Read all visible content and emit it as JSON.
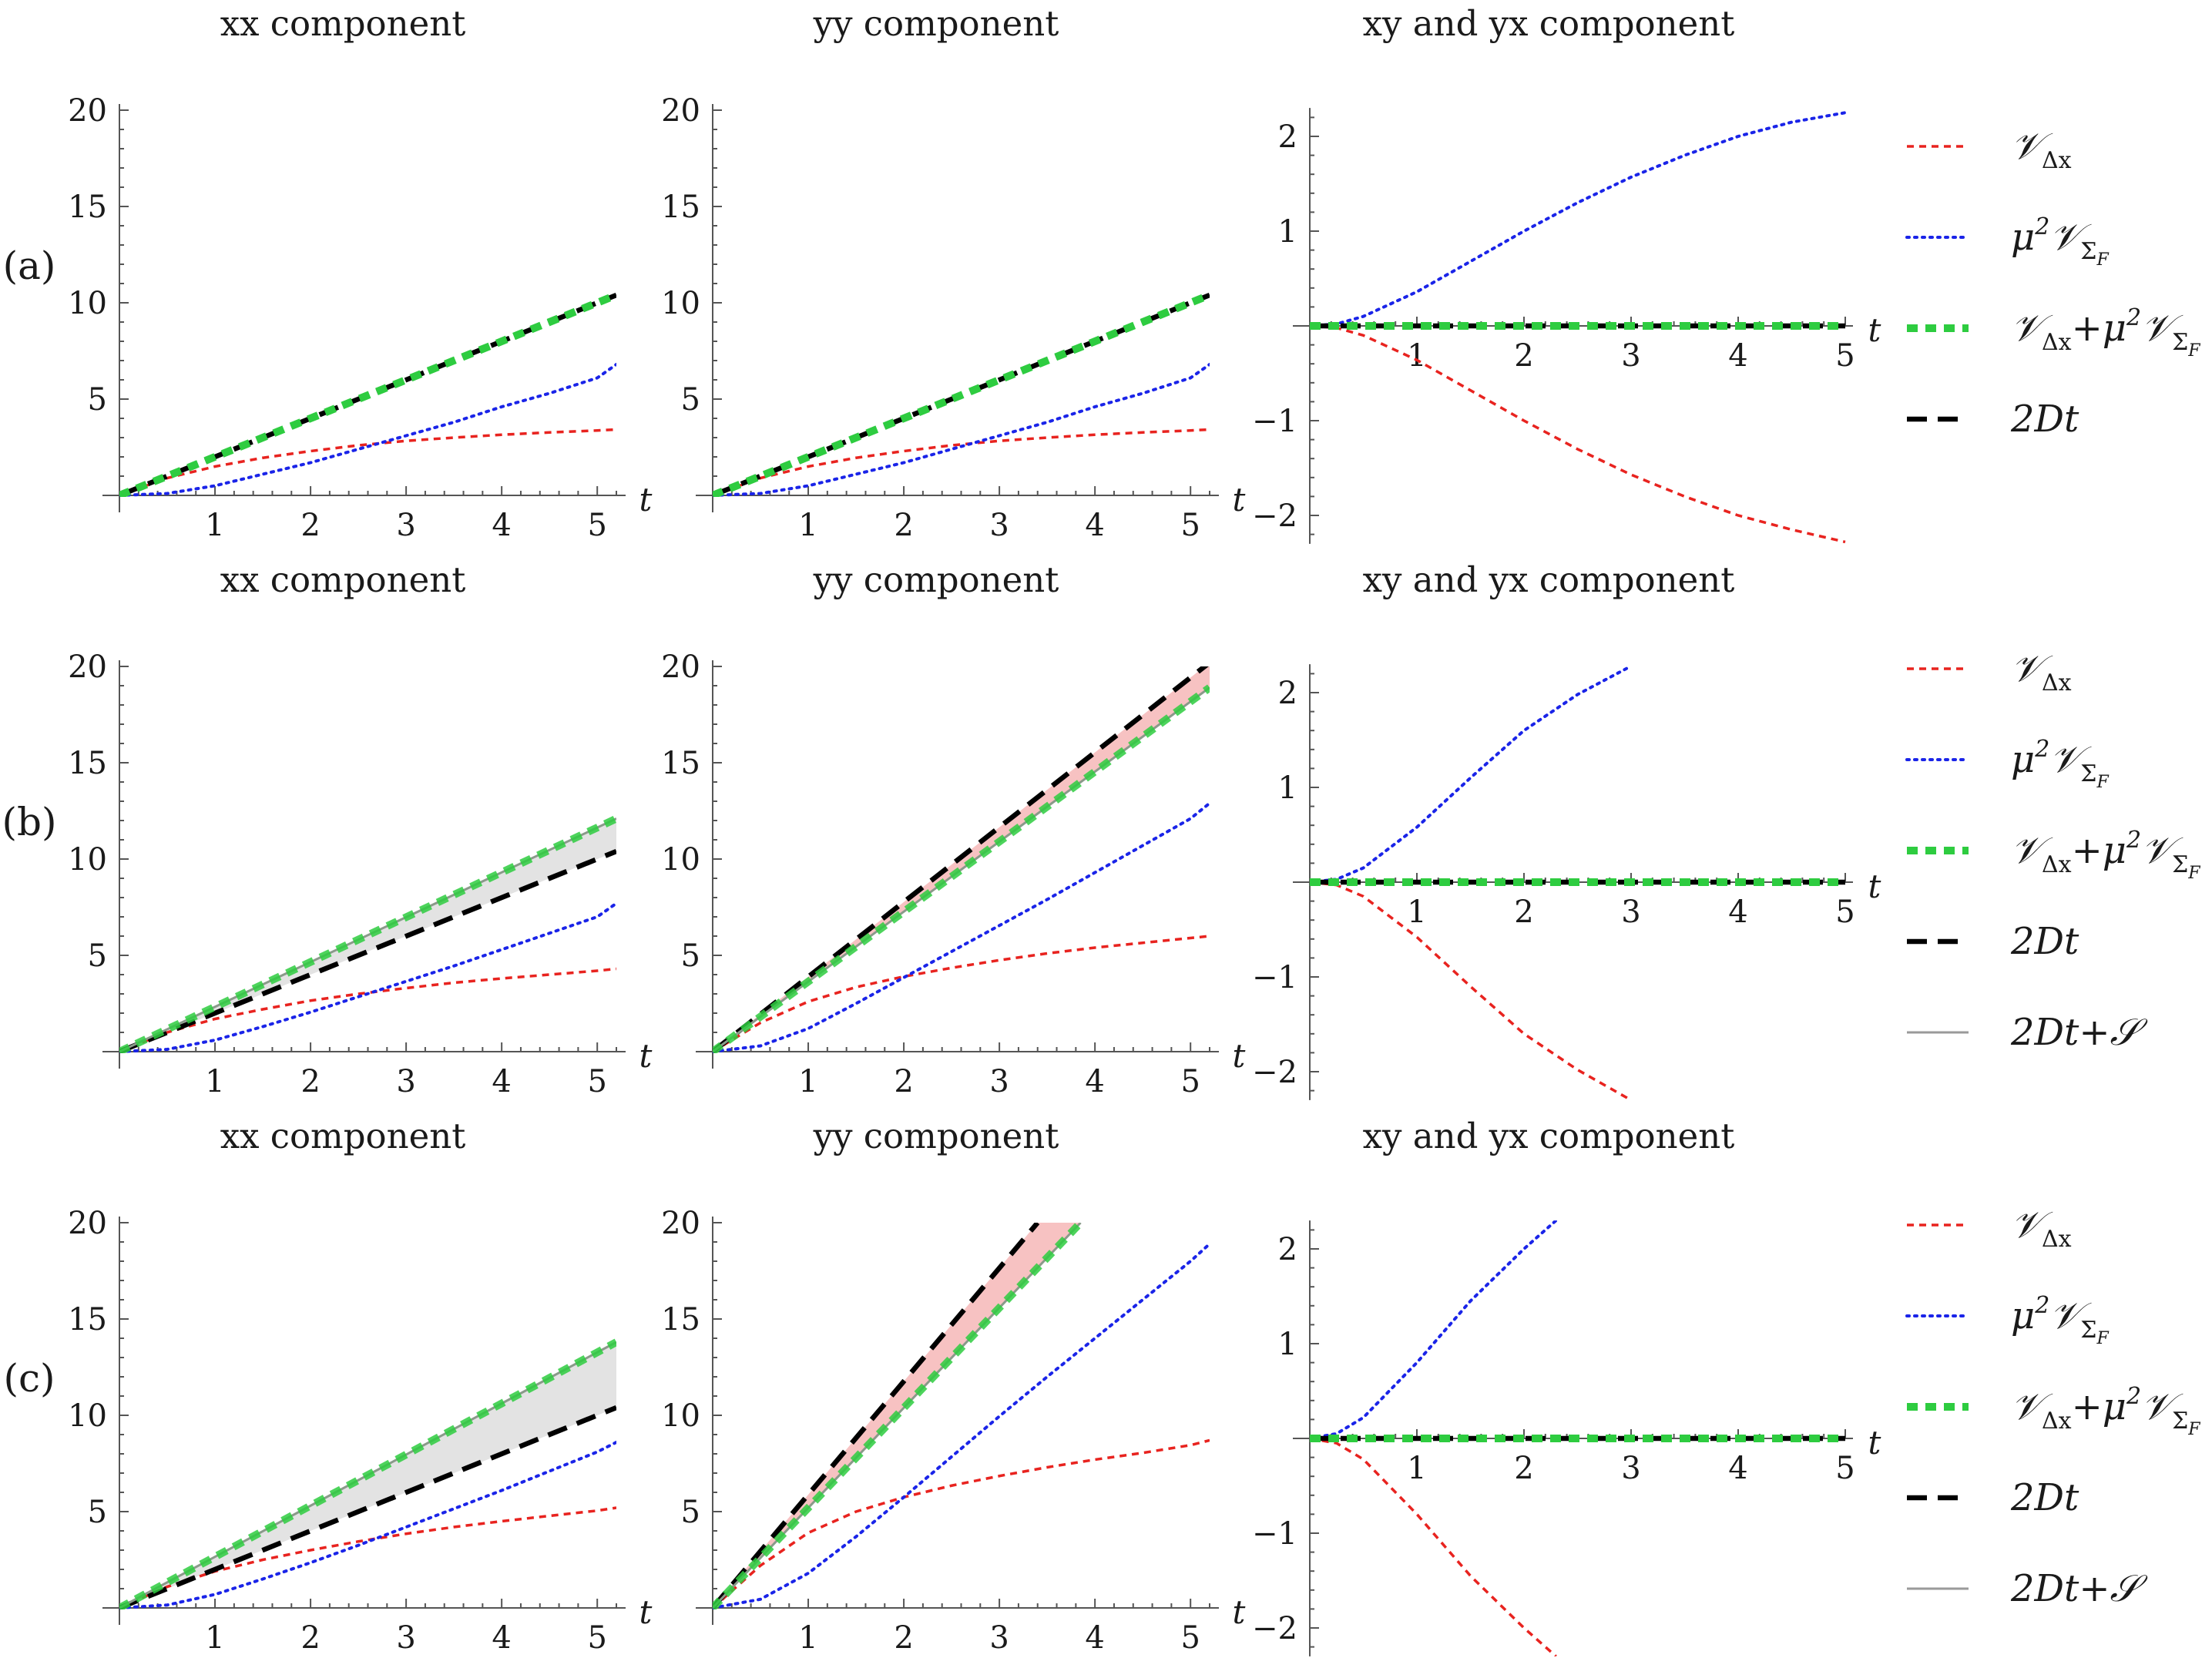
{
  "chart_data": [
    {
      "row": "a",
      "panel": "xx",
      "type": "line",
      "title": "xx component",
      "row_label": "(a)",
      "xlabel": "t",
      "ylabel": "",
      "xlim": [
        0,
        5.2
      ],
      "ylim": [
        0,
        20
      ],
      "xticks": [
        "1",
        "2",
        "3",
        "4",
        "5"
      ],
      "yticks": [
        "5",
        "10",
        "15",
        "20"
      ],
      "series": [
        {
          "name": "V_dx",
          "color": "#e8231f",
          "x": [
            0,
            0.5,
            1,
            1.5,
            2,
            2.5,
            3,
            3.5,
            4,
            4.5,
            5,
            5.2
          ],
          "values": [
            0,
            0.9,
            1.5,
            1.95,
            2.3,
            2.6,
            2.83,
            3.0,
            3.15,
            3.27,
            3.37,
            3.42
          ]
        },
        {
          "name": "mu2V_SF",
          "color": "#1a24e8",
          "x": [
            0,
            0.5,
            1,
            1.5,
            2,
            2.5,
            3,
            3.5,
            4,
            4.5,
            5,
            5.2
          ],
          "values": [
            0,
            0.1,
            0.5,
            1.1,
            1.7,
            2.4,
            3.1,
            3.8,
            4.6,
            5.3,
            6.1,
            6.8
          ]
        },
        {
          "name": "sum",
          "color": "#2ecc40",
          "x": [
            0,
            5.2
          ],
          "values": [
            0,
            10.4
          ]
        },
        {
          "name": "2Dt",
          "color": "#000000",
          "x": [
            0,
            5.2
          ],
          "values": [
            0,
            10.4
          ]
        }
      ],
      "band_color": ""
    },
    {
      "row": "a",
      "panel": "yy",
      "type": "line",
      "title": "yy component",
      "xlabel": "t",
      "xlim": [
        0,
        5.2
      ],
      "ylim": [
        0,
        20
      ],
      "xticks": [
        "1",
        "2",
        "3",
        "4",
        "5"
      ],
      "yticks": [
        "5",
        "10",
        "15",
        "20"
      ],
      "series": [
        {
          "name": "V_dx",
          "color": "#e8231f",
          "x": [
            0,
            0.5,
            1,
            1.5,
            2,
            2.5,
            3,
            3.5,
            4,
            4.5,
            5,
            5.2
          ],
          "values": [
            0,
            0.9,
            1.5,
            1.95,
            2.3,
            2.6,
            2.83,
            3.0,
            3.15,
            3.27,
            3.37,
            3.42
          ]
        },
        {
          "name": "mu2V_SF",
          "color": "#1a24e8",
          "x": [
            0,
            0.5,
            1,
            1.5,
            2,
            2.5,
            3,
            3.5,
            4,
            4.5,
            5,
            5.2
          ],
          "values": [
            0,
            0.1,
            0.5,
            1.1,
            1.7,
            2.4,
            3.1,
            3.8,
            4.6,
            5.3,
            6.1,
            6.8
          ]
        },
        {
          "name": "sum",
          "color": "#2ecc40",
          "x": [
            0,
            5.2
          ],
          "values": [
            0,
            10.4
          ]
        },
        {
          "name": "2Dt",
          "color": "#000000",
          "x": [
            0,
            5.2
          ],
          "values": [
            0,
            10.4
          ]
        }
      ],
      "band_color": ""
    },
    {
      "row": "a",
      "panel": "xy",
      "type": "line",
      "title": "xy and yx component",
      "xlabel": "t",
      "xlim": [
        0,
        5
      ],
      "ylim": [
        -2.3,
        2.3
      ],
      "xticks": [
        "1",
        "2",
        "3",
        "4",
        "5"
      ],
      "yticks": [
        "2",
        "1",
        "−1",
        "−2"
      ],
      "series": [
        {
          "name": "mu2V_SF",
          "color": "#1a24e8",
          "x": [
            0,
            0.25,
            0.5,
            1,
            1.5,
            2,
            2.5,
            3,
            3.5,
            4,
            4.5,
            5
          ],
          "values": [
            0,
            0.02,
            0.1,
            0.36,
            0.68,
            1.0,
            1.3,
            1.57,
            1.8,
            2.0,
            2.15,
            2.25
          ]
        },
        {
          "name": "V_dx",
          "color": "#e8231f",
          "x": [
            0,
            0.25,
            0.5,
            1,
            1.5,
            2,
            2.5,
            3,
            3.5,
            4,
            4.5,
            5
          ],
          "values": [
            0,
            -0.02,
            -0.1,
            -0.36,
            -0.68,
            -1.0,
            -1.3,
            -1.57,
            -1.8,
            -2.0,
            -2.15,
            -2.28
          ]
        },
        {
          "name": "sum",
          "color": "#2ecc40",
          "x": [
            0,
            5
          ],
          "values": [
            0,
            0
          ]
        },
        {
          "name": "2Dt",
          "color": "#000000",
          "x": [
            0,
            5
          ],
          "values": [
            0,
            0
          ]
        }
      ]
    },
    {
      "row": "b",
      "panel": "xx",
      "type": "line",
      "title": "xx component",
      "row_label": "(b)",
      "xlabel": "t",
      "xlim": [
        0,
        5.2
      ],
      "ylim": [
        0,
        20
      ],
      "xticks": [
        "1",
        "2",
        "3",
        "4",
        "5"
      ],
      "yticks": [
        "5",
        "10",
        "15",
        "20"
      ],
      "series": [
        {
          "name": "V_dx",
          "color": "#e8231f",
          "x": [
            0,
            0.5,
            1,
            1.5,
            2,
            2.5,
            3,
            3.5,
            4,
            4.5,
            5,
            5.2
          ],
          "values": [
            0,
            1.0,
            1.7,
            2.2,
            2.65,
            3.0,
            3.3,
            3.58,
            3.8,
            4.0,
            4.2,
            4.3
          ]
        },
        {
          "name": "mu2V_SF",
          "color": "#1a24e8",
          "x": [
            0,
            0.5,
            1,
            1.5,
            2,
            2.5,
            3,
            3.5,
            4,
            4.5,
            5,
            5.2
          ],
          "values": [
            0,
            0.12,
            0.6,
            1.3,
            2.05,
            2.85,
            3.65,
            4.45,
            5.3,
            6.15,
            7.0,
            7.7
          ]
        },
        {
          "name": "sum",
          "color": "#2ecc40",
          "x": [
            0,
            5.2
          ],
          "values": [
            0,
            12.1
          ]
        },
        {
          "name": "2Dt",
          "color": "#000000",
          "x": [
            0,
            5.2
          ],
          "values": [
            0,
            10.4
          ]
        }
      ],
      "band_color": "#e3e3e3"
    },
    {
      "row": "b",
      "panel": "yy",
      "type": "line",
      "title": "yy component",
      "xlabel": "t",
      "xlim": [
        0,
        5.2
      ],
      "ylim": [
        0,
        20
      ],
      "xticks": [
        "1",
        "2",
        "3",
        "4",
        "5"
      ],
      "yticks": [
        "5",
        "10",
        "15",
        "20"
      ],
      "series": [
        {
          "name": "V_dx",
          "color": "#e8231f",
          "x": [
            0,
            0.5,
            1,
            1.5,
            2,
            2.5,
            3,
            3.5,
            4,
            4.5,
            5,
            5.2
          ],
          "values": [
            0,
            1.5,
            2.6,
            3.35,
            3.9,
            4.35,
            4.75,
            5.1,
            5.4,
            5.65,
            5.9,
            6.0
          ]
        },
        {
          "name": "mu2V_SF",
          "color": "#1a24e8",
          "x": [
            0,
            0.5,
            1,
            1.5,
            2,
            2.5,
            3,
            3.5,
            4,
            4.5,
            5,
            5.2
          ],
          "values": [
            0,
            0.3,
            1.2,
            2.5,
            3.85,
            5.2,
            6.55,
            7.9,
            9.3,
            10.7,
            12.1,
            12.9
          ]
        },
        {
          "name": "sum",
          "color": "#2ecc40",
          "x": [
            0,
            5.2
          ],
          "values": [
            0,
            18.9
          ]
        },
        {
          "name": "2Dt",
          "color": "#000000",
          "x": [
            0,
            5.2
          ],
          "values": [
            0,
            20.2
          ]
        }
      ],
      "band_color": "#f7c2c2"
    },
    {
      "row": "b",
      "panel": "xy",
      "type": "line",
      "title": "xy and yx component",
      "xlabel": "t",
      "xlim": [
        0,
        5
      ],
      "ylim": [
        -2.3,
        2.3
      ],
      "xticks": [
        "1",
        "2",
        "3",
        "4",
        "5"
      ],
      "yticks": [
        "2",
        "1",
        "−1",
        "−2"
      ],
      "series": [
        {
          "name": "mu2V_SF",
          "color": "#1a24e8",
          "x": [
            0,
            0.25,
            0.5,
            1,
            1.5,
            2,
            2.5,
            3
          ],
          "values": [
            0,
            0.03,
            0.15,
            0.58,
            1.1,
            1.6,
            1.98,
            2.28
          ]
        },
        {
          "name": "V_dx",
          "color": "#e8231f",
          "x": [
            0,
            0.25,
            0.5,
            1,
            1.5,
            2,
            2.5,
            3
          ],
          "values": [
            0,
            -0.03,
            -0.15,
            -0.58,
            -1.1,
            -1.6,
            -1.98,
            -2.3
          ]
        },
        {
          "name": "sum",
          "color": "#2ecc40",
          "x": [
            0,
            5
          ],
          "values": [
            0,
            0
          ]
        },
        {
          "name": "2Dt",
          "color": "#000000",
          "x": [
            0,
            5
          ],
          "values": [
            0,
            0
          ]
        }
      ]
    },
    {
      "row": "c",
      "panel": "xx",
      "type": "line",
      "title": "xx component",
      "row_label": "(c)",
      "xlabel": "t",
      "xlim": [
        0,
        5.2
      ],
      "ylim": [
        0,
        20
      ],
      "xticks": [
        "1",
        "2",
        "3",
        "4",
        "5"
      ],
      "yticks": [
        "5",
        "10",
        "15",
        "20"
      ],
      "series": [
        {
          "name": "V_dx",
          "color": "#e8231f",
          "x": [
            0,
            0.5,
            1,
            1.5,
            2,
            2.5,
            3,
            3.5,
            4,
            4.5,
            5,
            5.2
          ],
          "values": [
            0,
            1.1,
            1.9,
            2.5,
            3.0,
            3.45,
            3.85,
            4.2,
            4.5,
            4.78,
            5.05,
            5.2
          ]
        },
        {
          "name": "mu2V_SF",
          "color": "#1a24e8",
          "x": [
            0,
            0.5,
            1,
            1.5,
            2,
            2.5,
            3,
            3.5,
            4,
            4.5,
            5,
            5.2
          ],
          "values": [
            0,
            0.15,
            0.7,
            1.5,
            2.35,
            3.25,
            4.2,
            5.15,
            6.1,
            7.1,
            8.1,
            8.6
          ]
        },
        {
          "name": "sum",
          "color": "#2ecc40",
          "x": [
            0,
            5.2
          ],
          "values": [
            0,
            13.8
          ]
        },
        {
          "name": "2Dt",
          "color": "#000000",
          "x": [
            0,
            5.2
          ],
          "values": [
            0,
            10.4
          ]
        }
      ],
      "band_color": "#e3e3e3"
    },
    {
      "row": "c",
      "panel": "yy",
      "type": "line",
      "title": "yy component",
      "xlabel": "t",
      "xlim": [
        0,
        5.2
      ],
      "ylim": [
        0,
        20
      ],
      "xticks": [
        "1",
        "2",
        "3",
        "4",
        "5"
      ],
      "yticks": [
        "5",
        "10",
        "15",
        "20"
      ],
      "series": [
        {
          "name": "V_dx",
          "color": "#e8231f",
          "x": [
            0,
            0.5,
            1,
            1.5,
            2,
            2.5,
            3,
            3.5,
            4,
            4.5,
            5,
            5.2
          ],
          "values": [
            0,
            2.2,
            3.9,
            5.0,
            5.75,
            6.35,
            6.85,
            7.3,
            7.7,
            8.05,
            8.45,
            8.7
          ]
        },
        {
          "name": "mu2V_SF",
          "color": "#1a24e8",
          "x": [
            0,
            0.5,
            1,
            1.5,
            2,
            2.5,
            3,
            3.5,
            4,
            4.5,
            5,
            5.2
          ],
          "values": [
            0,
            0.45,
            1.8,
            3.7,
            5.75,
            7.85,
            9.95,
            12.0,
            14.0,
            16.0,
            18.0,
            18.9
          ]
        },
        {
          "name": "sum",
          "color": "#2ecc40",
          "x": [
            0,
            3.85
          ],
          "values": [
            0,
            20
          ]
        },
        {
          "name": "2Dt",
          "color": "#000000",
          "x": [
            0,
            3.4
          ],
          "values": [
            0,
            20
          ]
        }
      ],
      "band_color": "#f7c2c2"
    },
    {
      "row": "c",
      "panel": "xy",
      "type": "line",
      "title": "xy and yx component",
      "xlabel": "t",
      "xlim": [
        0,
        5
      ],
      "ylim": [
        -2.3,
        2.3
      ],
      "xticks": [
        "1",
        "2",
        "3",
        "4",
        "5"
      ],
      "yticks": [
        "2",
        "1",
        "−1",
        "−2"
      ],
      "series": [
        {
          "name": "mu2V_SF",
          "color": "#1a24e8",
          "x": [
            0,
            0.25,
            0.5,
            1,
            1.5,
            2,
            2.3
          ],
          "values": [
            0,
            0.05,
            0.22,
            0.8,
            1.45,
            2.0,
            2.3
          ]
        },
        {
          "name": "V_dx",
          "color": "#e8231f",
          "x": [
            0,
            0.25,
            0.5,
            1,
            1.5,
            2,
            2.3
          ],
          "values": [
            0,
            -0.05,
            -0.22,
            -0.8,
            -1.45,
            -2.0,
            -2.3
          ]
        },
        {
          "name": "sum",
          "color": "#2ecc40",
          "x": [
            0,
            5
          ],
          "values": [
            0,
            0
          ]
        },
        {
          "name": "2Dt",
          "color": "#000000",
          "x": [
            0,
            5
          ],
          "values": [
            0,
            0
          ]
        }
      ]
    }
  ],
  "legends": [
    {
      "row": "a",
      "items": [
        {
          "key": "V_dx",
          "main": "𝒱",
          "sub": "Δx",
          "color": "#e8231f"
        },
        {
          "key": "mu2V_SF",
          "pre": "μ",
          "sup": "2",
          "main": "𝒱",
          "sub": "Σ",
          "subsub": "F",
          "color": "#1a24e8"
        },
        {
          "key": "sum",
          "main": "𝒱",
          "sub": "Δx",
          "plus": "+μ",
          "sup": "2",
          "main2": "𝒱",
          "sub2": "Σ",
          "subsub": "F",
          "color": "#2ecc40"
        },
        {
          "key": "2Dt",
          "text": "2Dt",
          "color": "#000000"
        }
      ]
    },
    {
      "row": "b",
      "items": [
        {
          "key": "V_dx",
          "main": "𝒱",
          "sub": "Δx",
          "color": "#e8231f"
        },
        {
          "key": "mu2V_SF",
          "pre": "μ",
          "sup": "2",
          "main": "𝒱",
          "sub": "Σ",
          "subsub": "F",
          "color": "#1a24e8"
        },
        {
          "key": "sum",
          "main": "𝒱",
          "sub": "Δx",
          "plus": "+μ",
          "sup": "2",
          "main2": "𝒱",
          "sub2": "Σ",
          "subsub": "F",
          "color": "#2ecc40"
        },
        {
          "key": "2Dt",
          "text": "2Dt",
          "color": "#000000"
        },
        {
          "key": "2DtS",
          "text": "2Dt+𝒮",
          "color": "#9a9a9a"
        }
      ]
    },
    {
      "row": "c",
      "items": [
        {
          "key": "V_dx",
          "main": "𝒱",
          "sub": "Δx",
          "color": "#e8231f"
        },
        {
          "key": "mu2V_SF",
          "pre": "μ",
          "sup": "2",
          "main": "𝒱",
          "sub": "Σ",
          "subsub": "F",
          "color": "#1a24e8"
        },
        {
          "key": "sum",
          "main": "𝒱",
          "sub": "Δx",
          "plus": "+μ",
          "sup": "2",
          "main2": "𝒱",
          "sub2": "Σ",
          "subsub": "F",
          "color": "#2ecc40"
        },
        {
          "key": "2Dt",
          "text": "2Dt",
          "color": "#000000"
        },
        {
          "key": "2DtS",
          "text": "2Dt+𝒮",
          "color": "#9a9a9a"
        }
      ]
    }
  ]
}
